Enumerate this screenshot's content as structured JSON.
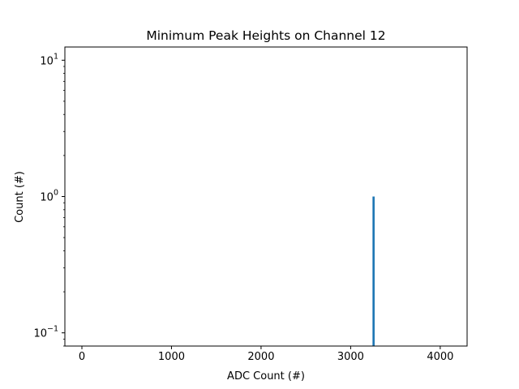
{
  "chart_data": {
    "type": "bar",
    "title": "Minimum Peak Heights on Channel 12",
    "xlabel": "ADC Count (#)",
    "ylabel": "Count (#)",
    "y_scale": "log",
    "xlim": [
      -190,
      4300
    ],
    "ylim": [
      0.08,
      12.5
    ],
    "x_ticks": [
      0,
      1000,
      2000,
      3000,
      4000
    ],
    "x_tick_labels": [
      "0",
      "1000",
      "2000",
      "3000",
      "4000"
    ],
    "y_ticks": [
      0.1,
      1,
      10
    ],
    "y_tick_labels": [
      {
        "base": "10",
        "exp": "−1"
      },
      {
        "base": "10",
        "exp": "0"
      },
      {
        "base": "10",
        "exp": "1"
      }
    ],
    "grid": false,
    "bars": [
      {
        "x_start": 3244,
        "x_end": 3268,
        "value": 1
      }
    ],
    "bar_color": "#1f77b4"
  }
}
